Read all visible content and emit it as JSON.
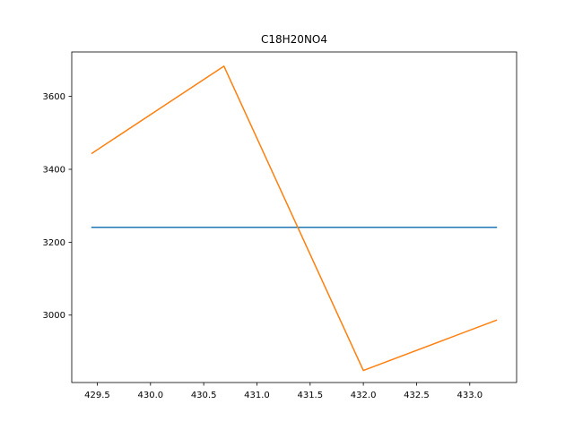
{
  "chart_data": {
    "type": "line",
    "title": "C18H20NO4",
    "xlabel": "",
    "ylabel": "",
    "xlim": [
      429.26,
      433.44
    ],
    "ylim": [
      2815,
      3722
    ],
    "grid": false,
    "xticks": [
      429.5,
      430.0,
      430.5,
      431.0,
      431.5,
      432.0,
      432.5,
      433.0
    ],
    "xtick_labels": [
      "429.5",
      "430.0",
      "430.5",
      "431.0",
      "431.5",
      "432.0",
      "432.5",
      "433.0"
    ],
    "yticks": [
      3000,
      3200,
      3400,
      3600
    ],
    "ytick_labels": [
      "3000",
      "3200",
      "3400",
      "3600"
    ],
    "series": [
      {
        "color": "#1f77b4",
        "x": [
          429.45,
          433.25
        ],
        "y": [
          3241,
          3241
        ]
      },
      {
        "color": "#ff7f0e",
        "x": [
          429.45,
          430.69,
          432.0,
          433.25
        ],
        "y": [
          3444,
          3683,
          2848,
          2986
        ]
      }
    ]
  }
}
